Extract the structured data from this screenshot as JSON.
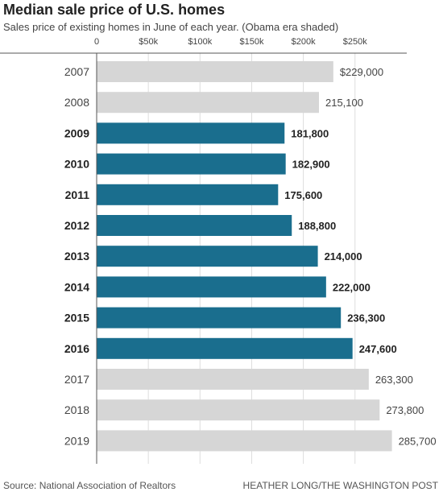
{
  "header": {
    "title": "Median sale price of U.S. homes",
    "subtitle": "Sales price of existing homes in June of each year. (Obama era shaded)"
  },
  "footer": {
    "source": "Source: National Association of Realtors",
    "credit": "HEATHER LONG/THE WASHINGTON POST"
  },
  "colors": {
    "highlight": "#1a6e8e",
    "default": "#d6d6d6"
  },
  "chart_data": {
    "type": "bar",
    "orientation": "horizontal",
    "categories": [
      "2007",
      "2008",
      "2009",
      "2010",
      "2011",
      "2012",
      "2013",
      "2014",
      "2015",
      "2016",
      "2017",
      "2018",
      "2019"
    ],
    "values": [
      229000,
      215100,
      181800,
      182900,
      175600,
      188800,
      214000,
      222000,
      236300,
      247600,
      263300,
      273800,
      285700
    ],
    "value_labels": [
      "$229,000",
      "215,100",
      "181,800",
      "182,900",
      "175,600",
      "188,800",
      "214,000",
      "222,000",
      "236,300",
      "247,600",
      "263,300",
      "273,800",
      "285,700"
    ],
    "highlighted": [
      false,
      false,
      true,
      true,
      true,
      true,
      true,
      true,
      true,
      true,
      false,
      false,
      false
    ],
    "x_ticks": [
      0,
      50000,
      100000,
      150000,
      200000,
      250000
    ],
    "x_tick_labels": [
      "0",
      "$50k",
      "$100k",
      "$150k",
      "$200k",
      "$250k"
    ],
    "xlim": [
      0,
      285700
    ],
    "grid": true,
    "title": "Median sale price of U.S. homes",
    "xlabel": "",
    "ylabel": ""
  }
}
